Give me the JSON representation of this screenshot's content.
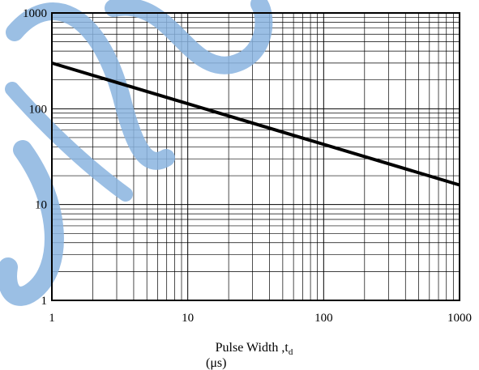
{
  "chart_data": {
    "type": "line",
    "title": "",
    "xlabel": "Pulse Width ,t",
    "xlabel_subscript": "d",
    "xlabel_unit": "(μs)",
    "ylabel": "",
    "xscale": "log",
    "yscale": "log",
    "xlim": [
      1,
      1000
    ],
    "ylim": [
      1,
      1000
    ],
    "x_ticks": [
      "1",
      "10",
      "100",
      "1000"
    ],
    "y_ticks": [
      "1",
      "10",
      "100",
      "1000"
    ],
    "grid": "major and minor",
    "series": [
      {
        "x": [
          1,
          1000
        ],
        "y": [
          300,
          16
        ],
        "color": "#000000"
      }
    ],
    "watermark_color": "#8ab4e0"
  }
}
